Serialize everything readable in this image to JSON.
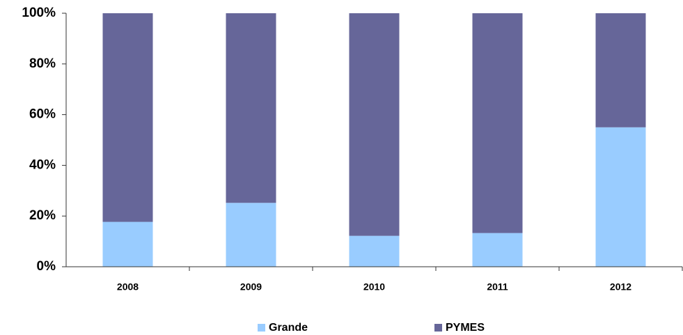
{
  "chart_data": {
    "type": "stacked_bar",
    "categories": [
      "2008",
      "2009",
      "2010",
      "2011",
      "2012"
    ],
    "series": [
      {
        "name": "Grande",
        "color": "#99ccff",
        "values": [
          17.7,
          25.2,
          12.2,
          13.3,
          55
        ]
      },
      {
        "name": "PYMES",
        "color": "#666699",
        "values": [
          82.3,
          74.8,
          87.8,
          86.7,
          45
        ]
      }
    ],
    "ylim": [
      0,
      100
    ],
    "yticks": [
      {
        "value": 0,
        "label": "0%"
      },
      {
        "value": 20,
        "label": "20%"
      },
      {
        "value": 40,
        "label": "40%"
      },
      {
        "value": 60,
        "label": "60%"
      },
      {
        "value": 80,
        "label": "80%"
      },
      {
        "value": 100,
        "label": "100%"
      }
    ],
    "grid": false,
    "legend": "bottom"
  }
}
